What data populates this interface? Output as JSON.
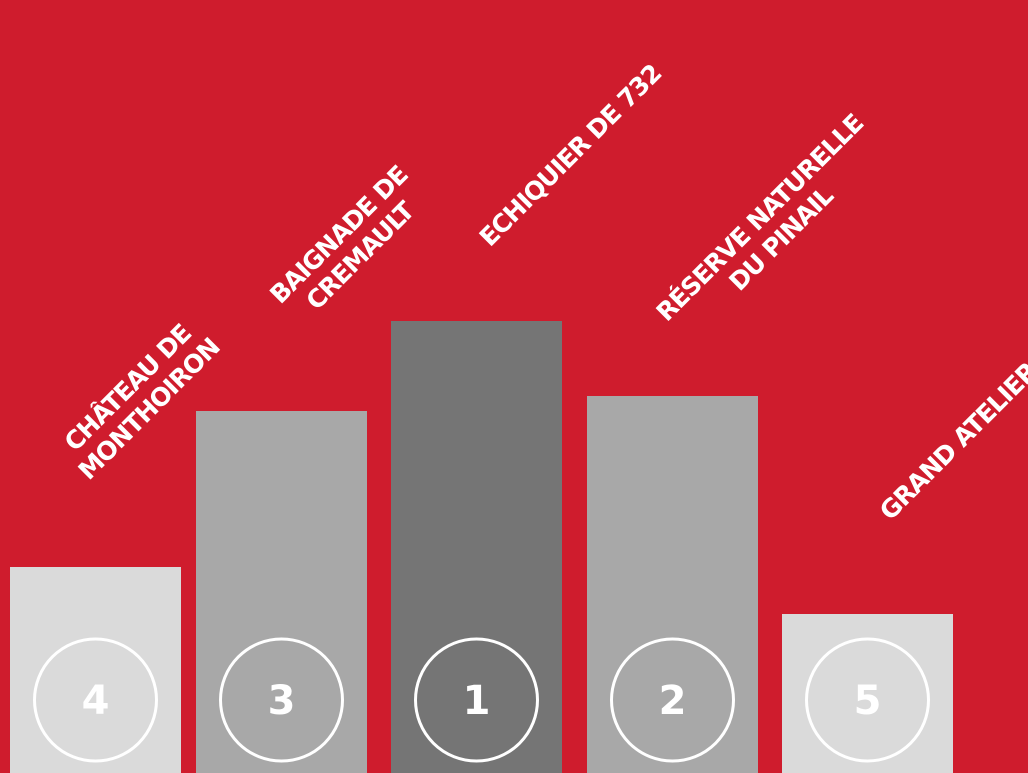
{
  "chart_data": {
    "type": "bar",
    "categories": [
      [
        "CHÂTEAU DE",
        "MONTHOIRON"
      ],
      [
        "BAIGNADE DE",
        "CREMAULT"
      ],
      [
        "ECHIQUIER DE 732"
      ],
      [
        "RÉSERVE NATURELLE",
        "DU PINAIL"
      ],
      [
        "GRAND ATELIER"
      ]
    ],
    "ranks": [
      "4",
      "3",
      "1",
      "2",
      "5"
    ],
    "values": [
      206,
      362,
      452,
      377,
      159
    ],
    "ylim": [
      0,
      460
    ],
    "colors": {
      "background": "#cf1c2d",
      "bars": [
        "#dadada",
        "#a8a8a8",
        "#757575",
        "#a8a8a8",
        "#dadada"
      ],
      "rank_circle": "#ffffff"
    },
    "grid": false,
    "legend": "none"
  }
}
